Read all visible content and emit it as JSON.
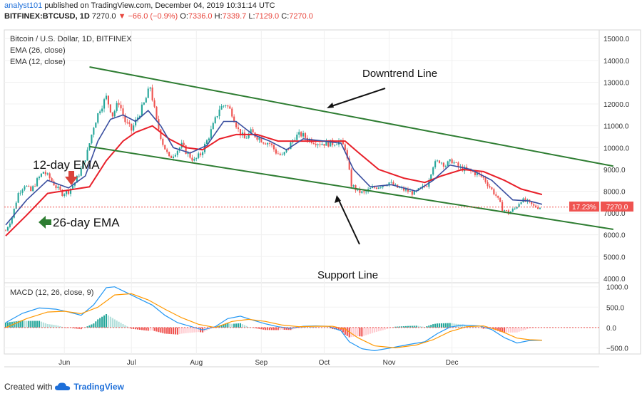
{
  "header": {
    "user": "analyst101",
    "published_text": "published on TradingView.com, December 04, 2019 10:31:14 UTC"
  },
  "ticker": {
    "symbol": "BITFINEX:BTCUSD, 1D",
    "last": "7270.0",
    "change": "▼ −66.0 (−0.9%)",
    "open_label": "O:",
    "open": "7336.0",
    "high_label": "H:",
    "high": "7339.7",
    "low_label": "L:",
    "low": "7129.0",
    "close_label": "C:",
    "close": "7270.0"
  },
  "legend": {
    "title": "Bitcoin / U.S. Dollar, 1D, BITFINEX",
    "ema26": "EMA (26, close)",
    "ema12": "EMA (12, close)",
    "macd": "MACD (12, 26, close, 9)"
  },
  "price_badge": {
    "pct": "17.23%",
    "price": "7270.0"
  },
  "annotations": {
    "downtrend": "Downtrend Line",
    "support": "Support Line",
    "ema12": "12-day EMA",
    "ema26": "26-day EMA"
  },
  "footer": {
    "created_with": "Created with",
    "brand": "TradingView"
  },
  "colors": {
    "up": "#26a69a",
    "down": "#ef5350",
    "ema12": "#3a4fa0",
    "ema26": "#e8202a",
    "trend": "#2e7d32",
    "macd": "#2196f3",
    "signal": "#ff9800",
    "red_arrow": "#d9433a"
  },
  "chart_data": {
    "type": "candlestick",
    "x_ticks": [
      "Jun",
      "Jul",
      "Aug",
      "Sep",
      "Oct",
      "Nov",
      "Dec"
    ],
    "price_axis": {
      "ticks": [
        "15000.0",
        "14000.0",
        "13000.0",
        "12000.0",
        "11000.0",
        "10000.0",
        "9000.0",
        "8000.0",
        "7000.0",
        "6000.0",
        "5000.0",
        "4000.0"
      ],
      "ylim": [
        3800,
        15400
      ]
    },
    "macd_axis": {
      "ticks": [
        "1000.0",
        "500.0",
        "0.0",
        "−500.0"
      ],
      "ylim": [
        -650,
        1100
      ]
    },
    "price_path": [
      [
        0,
        6200
      ],
      [
        3,
        6800
      ],
      [
        6,
        7900
      ],
      [
        9,
        8300
      ],
      [
        12,
        8000
      ],
      [
        15,
        8500
      ],
      [
        18,
        8900
      ],
      [
        21,
        8600
      ],
      [
        24,
        8200
      ],
      [
        27,
        7900
      ],
      [
        30,
        8000
      ],
      [
        33,
        8400
      ],
      [
        36,
        9000
      ],
      [
        39,
        9800
      ],
      [
        42,
        11000
      ],
      [
        45,
        11800
      ],
      [
        48,
        12300
      ],
      [
        51,
        11500
      ],
      [
        54,
        12100
      ],
      [
        57,
        11200
      ],
      [
        60,
        10800
      ],
      [
        63,
        11400
      ],
      [
        66,
        12000
      ],
      [
        69,
        12800
      ],
      [
        72,
        11200
      ],
      [
        75,
        10200
      ],
      [
        78,
        9500
      ],
      [
        81,
        9800
      ],
      [
        84,
        10100
      ],
      [
        87,
        9700
      ],
      [
        90,
        9400
      ],
      [
        93,
        9700
      ],
      [
        96,
        10300
      ],
      [
        99,
        11000
      ],
      [
        102,
        11800
      ],
      [
        105,
        12000
      ],
      [
        108,
        11600
      ],
      [
        111,
        10800
      ],
      [
        114,
        10400
      ],
      [
        117,
        10700
      ],
      [
        120,
        10500
      ],
      [
        123,
        10300
      ],
      [
        126,
        10200
      ],
      [
        129,
        9800
      ],
      [
        132,
        9600
      ],
      [
        135,
        10000
      ],
      [
        138,
        10500
      ],
      [
        141,
        10600
      ],
      [
        144,
        10400
      ],
      [
        147,
        10300
      ],
      [
        150,
        10200
      ],
      [
        153,
        10200
      ],
      [
        156,
        10200
      ],
      [
        159,
        10300
      ],
      [
        162,
        10000
      ],
      [
        165,
        8300
      ],
      [
        168,
        8000
      ],
      [
        171,
        7900
      ],
      [
        174,
        8100
      ],
      [
        177,
        8200
      ],
      [
        180,
        8300
      ],
      [
        183,
        8400
      ],
      [
        186,
        8200
      ],
      [
        189,
        8100
      ],
      [
        192,
        8000
      ],
      [
        195,
        7900
      ],
      [
        198,
        8100
      ],
      [
        201,
        8300
      ],
      [
        204,
        9200
      ],
      [
        207,
        9400
      ],
      [
        210,
        9200
      ],
      [
        213,
        9400
      ],
      [
        216,
        9100
      ],
      [
        219,
        9000
      ],
      [
        222,
        8900
      ],
      [
        225,
        8800
      ],
      [
        228,
        8600
      ],
      [
        231,
        8200
      ],
      [
        234,
        7800
      ],
      [
        237,
        7200
      ],
      [
        240,
        7000
      ],
      [
        243,
        7200
      ],
      [
        246,
        7600
      ],
      [
        249,
        7500
      ],
      [
        252,
        7300
      ],
      [
        255,
        7270
      ]
    ],
    "n_candles": 256,
    "ema12_points": [
      [
        0,
        6450
      ],
      [
        10,
        7600
      ],
      [
        20,
        8500
      ],
      [
        30,
        8150
      ],
      [
        38,
        8700
      ],
      [
        44,
        10300
      ],
      [
        50,
        11300
      ],
      [
        56,
        11500
      ],
      [
        62,
        11200
      ],
      [
        68,
        11700
      ],
      [
        74,
        11000
      ],
      [
        80,
        10000
      ],
      [
        88,
        9750
      ],
      [
        96,
        10100
      ],
      [
        104,
        11200
      ],
      [
        110,
        11200
      ],
      [
        118,
        10600
      ],
      [
        126,
        10300
      ],
      [
        134,
        9900
      ],
      [
        142,
        10400
      ],
      [
        152,
        10300
      ],
      [
        160,
        10200
      ],
      [
        166,
        9000
      ],
      [
        174,
        8200
      ],
      [
        184,
        8300
      ],
      [
        196,
        8000
      ],
      [
        204,
        8500
      ],
      [
        212,
        9200
      ],
      [
        222,
        9000
      ],
      [
        232,
        8500
      ],
      [
        242,
        7600
      ],
      [
        250,
        7550
      ],
      [
        256,
        7400
      ]
    ],
    "ema26_points": [
      [
        0,
        5950
      ],
      [
        10,
        6900
      ],
      [
        20,
        7900
      ],
      [
        30,
        8050
      ],
      [
        40,
        8200
      ],
      [
        48,
        9400
      ],
      [
        56,
        10300
      ],
      [
        62,
        10700
      ],
      [
        70,
        11000
      ],
      [
        78,
        10400
      ],
      [
        86,
        10000
      ],
      [
        94,
        9900
      ],
      [
        102,
        10400
      ],
      [
        110,
        10600
      ],
      [
        120,
        10600
      ],
      [
        130,
        10300
      ],
      [
        140,
        10300
      ],
      [
        152,
        10300
      ],
      [
        162,
        10300
      ],
      [
        168,
        9800
      ],
      [
        178,
        9000
      ],
      [
        190,
        8600
      ],
      [
        200,
        8400
      ],
      [
        208,
        8700
      ],
      [
        218,
        9000
      ],
      [
        228,
        8900
      ],
      [
        238,
        8500
      ],
      [
        246,
        8100
      ],
      [
        256,
        7850
      ]
    ],
    "downtrend_line": {
      "start": [
        40,
        13700
      ],
      "end": [
        290,
        9150
      ]
    },
    "support_line": {
      "start": [
        40,
        10050
      ],
      "end": [
        290,
        6250
      ]
    },
    "macd_points": [
      [
        0,
        120
      ],
      [
        8,
        350
      ],
      [
        16,
        480
      ],
      [
        24,
        450
      ],
      [
        30,
        380
      ],
      [
        36,
        300
      ],
      [
        42,
        560
      ],
      [
        48,
        980
      ],
      [
        52,
        1000
      ],
      [
        58,
        850
      ],
      [
        64,
        700
      ],
      [
        70,
        550
      ],
      [
        76,
        300
      ],
      [
        82,
        120
      ],
      [
        88,
        30
      ],
      [
        94,
        -60
      ],
      [
        100,
        20
      ],
      [
        106,
        220
      ],
      [
        112,
        280
      ],
      [
        118,
        180
      ],
      [
        124,
        90
      ],
      [
        130,
        20
      ],
      [
        136,
        -20
      ],
      [
        142,
        30
      ],
      [
        148,
        40
      ],
      [
        154,
        30
      ],
      [
        160,
        -80
      ],
      [
        164,
        -350
      ],
      [
        170,
        -520
      ],
      [
        176,
        -570
      ],
      [
        184,
        -500
      ],
      [
        192,
        -420
      ],
      [
        200,
        -350
      ],
      [
        206,
        -150
      ],
      [
        212,
        10
      ],
      [
        218,
        60
      ],
      [
        226,
        40
      ],
      [
        232,
        -50
      ],
      [
        238,
        -250
      ],
      [
        244,
        -380
      ],
      [
        250,
        -320
      ],
      [
        256,
        -310
      ]
    ],
    "signal_points": [
      [
        0,
        0
      ],
      [
        10,
        220
      ],
      [
        20,
        380
      ],
      [
        28,
        400
      ],
      [
        36,
        340
      ],
      [
        44,
        500
      ],
      [
        52,
        800
      ],
      [
        60,
        830
      ],
      [
        68,
        680
      ],
      [
        76,
        450
      ],
      [
        84,
        240
      ],
      [
        92,
        80
      ],
      [
        100,
        0
      ],
      [
        108,
        150
      ],
      [
        116,
        200
      ],
      [
        124,
        150
      ],
      [
        132,
        60
      ],
      [
        140,
        20
      ],
      [
        148,
        30
      ],
      [
        156,
        30
      ],
      [
        162,
        -40
      ],
      [
        168,
        -250
      ],
      [
        176,
        -450
      ],
      [
        186,
        -500
      ],
      [
        196,
        -430
      ],
      [
        204,
        -300
      ],
      [
        212,
        -100
      ],
      [
        220,
        20
      ],
      [
        228,
        40
      ],
      [
        236,
        -80
      ],
      [
        244,
        -260
      ],
      [
        250,
        -300
      ],
      [
        256,
        -310
      ]
    ]
  }
}
